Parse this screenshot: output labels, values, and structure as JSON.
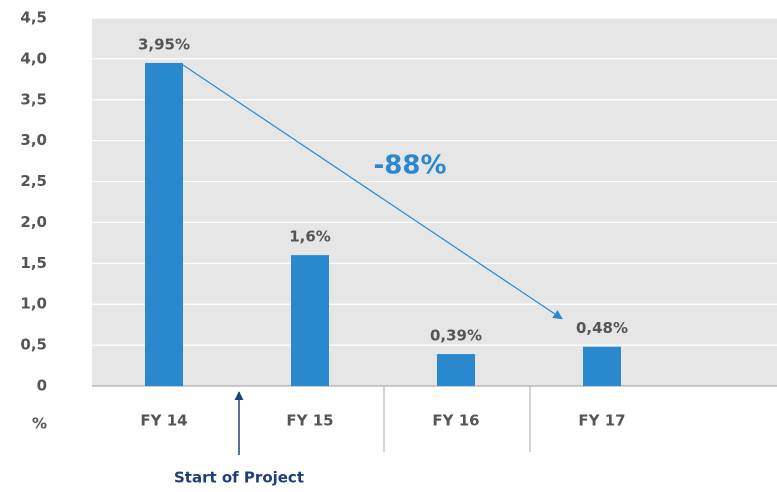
{
  "chart_data": {
    "type": "bar",
    "categories": [
      "FY 14",
      "FY 15",
      "FY 16",
      "FY 17"
    ],
    "values": [
      3.95,
      1.6,
      0.39,
      0.48
    ],
    "value_labels": [
      "3,95%",
      "1,6%",
      "0,39%",
      "0,48%"
    ],
    "color": "#2a88cf",
    "ylim": [
      0,
      4.5
    ],
    "yticks": [
      0,
      {
        "value": 0.5,
        "label": "0,5"
      },
      {
        "value": 1,
        "label": "1,0"
      },
      {
        "value": 1.5,
        "label": "1,5"
      },
      {
        "value": 2,
        "label": "2,0"
      },
      {
        "value": 2.5,
        "label": "2,5"
      },
      {
        "value": 3,
        "label": "3,0"
      },
      {
        "value": 3.5,
        "label": "3,5"
      },
      {
        "value": 4,
        "label": "4,0"
      },
      {
        "value": 4.5,
        "label": "4,5"
      }
    ],
    "y_unit": "%",
    "grid": true,
    "annotations": [
      {
        "text": "-88%"
      },
      {
        "text": "Start of Project"
      }
    ]
  }
}
